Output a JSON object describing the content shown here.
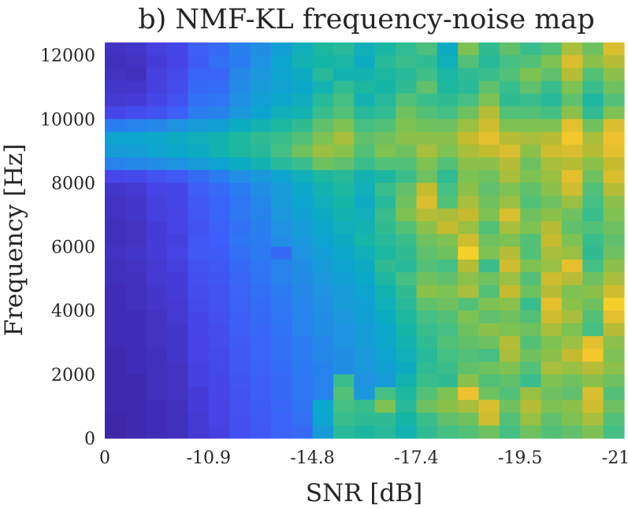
{
  "chart_data": {
    "type": "heatmap",
    "title": "b) NMF-KL frequency-noise map",
    "xlabel": "SNR [dB]",
    "ylabel": "Frequency [Hz]",
    "x_tick_labels": [
      "0",
      "-10.9",
      "-14.8",
      "-17.4",
      "-19.5",
      "-21.1"
    ],
    "y_ticks": [
      0,
      2000,
      4000,
      6000,
      8000,
      10000,
      12000
    ],
    "y_tick_labels": [
      "0",
      "2000",
      "4000",
      "6000",
      "8000",
      "10000",
      "12000"
    ],
    "ylim": [
      0,
      12400
    ],
    "n_columns": 25,
    "n_rows": 31,
    "colormap": "parula",
    "colors": [
      "#3e26a8",
      "#4743e6",
      "#3e5ff8",
      "#2b7af2",
      "#1f93df",
      "#0aa7cc",
      "#16b6a5",
      "#42bf86",
      "#82c24e",
      "#c3bb2f",
      "#f3c32e",
      "#f9e823"
    ],
    "values": [
      [
        0.04,
        0.05,
        0.08,
        0.1,
        0.18,
        0.22,
        0.3,
        0.34,
        0.42,
        0.5,
        0.56,
        0.58,
        0.5,
        0.55,
        0.6,
        0.65,
        0.48,
        0.72,
        0.6,
        0.68,
        0.62,
        0.66,
        0.78,
        0.7,
        0.86
      ],
      [
        0.03,
        0.04,
        0.07,
        0.09,
        0.17,
        0.24,
        0.28,
        0.36,
        0.45,
        0.52,
        0.54,
        0.55,
        0.48,
        0.58,
        0.62,
        0.6,
        0.5,
        0.66,
        0.58,
        0.64,
        0.66,
        0.72,
        0.86,
        0.74,
        0.8
      ],
      [
        0.04,
        0.03,
        0.08,
        0.11,
        0.2,
        0.21,
        0.32,
        0.38,
        0.44,
        0.48,
        0.58,
        0.52,
        0.52,
        0.56,
        0.58,
        0.63,
        0.55,
        0.6,
        0.62,
        0.66,
        0.72,
        0.68,
        0.8,
        0.66,
        0.74
      ],
      [
        0.05,
        0.05,
        0.08,
        0.12,
        0.22,
        0.23,
        0.33,
        0.4,
        0.43,
        0.46,
        0.52,
        0.6,
        0.56,
        0.54,
        0.6,
        0.68,
        0.56,
        0.58,
        0.68,
        0.62,
        0.68,
        0.62,
        0.72,
        0.62,
        0.7
      ],
      [
        0.06,
        0.07,
        0.1,
        0.14,
        0.24,
        0.26,
        0.35,
        0.42,
        0.46,
        0.49,
        0.58,
        0.64,
        0.52,
        0.58,
        0.66,
        0.62,
        0.6,
        0.64,
        0.72,
        0.6,
        0.62,
        0.58,
        0.68,
        0.56,
        0.66
      ],
      [
        0.1,
        0.12,
        0.14,
        0.18,
        0.28,
        0.3,
        0.38,
        0.44,
        0.5,
        0.52,
        0.62,
        0.66,
        0.58,
        0.6,
        0.7,
        0.66,
        0.64,
        0.7,
        0.8,
        0.66,
        0.66,
        0.64,
        0.74,
        0.6,
        0.72
      ],
      [
        0.28,
        0.3,
        0.32,
        0.36,
        0.4,
        0.42,
        0.48,
        0.52,
        0.56,
        0.6,
        0.68,
        0.72,
        0.64,
        0.66,
        0.72,
        0.7,
        0.7,
        0.76,
        0.84,
        0.72,
        0.72,
        0.72,
        0.88,
        0.7,
        0.86
      ],
      [
        0.44,
        0.45,
        0.46,
        0.48,
        0.5,
        0.52,
        0.56,
        0.6,
        0.62,
        0.66,
        0.72,
        0.78,
        0.68,
        0.7,
        0.74,
        0.74,
        0.74,
        0.82,
        0.88,
        0.8,
        0.78,
        0.8,
        0.92,
        0.78,
        0.9
      ],
      [
        0.4,
        0.41,
        0.44,
        0.46,
        0.48,
        0.52,
        0.56,
        0.58,
        0.64,
        0.7,
        0.76,
        0.74,
        0.66,
        0.72,
        0.7,
        0.78,
        0.72,
        0.78,
        0.82,
        0.86,
        0.74,
        0.84,
        0.86,
        0.8,
        0.88
      ],
      [
        0.3,
        0.32,
        0.34,
        0.36,
        0.4,
        0.44,
        0.48,
        0.52,
        0.58,
        0.62,
        0.7,
        0.68,
        0.62,
        0.66,
        0.66,
        0.72,
        0.66,
        0.74,
        0.74,
        0.8,
        0.7,
        0.78,
        0.8,
        0.74,
        0.82
      ],
      [
        0.1,
        0.11,
        0.14,
        0.16,
        0.22,
        0.28,
        0.34,
        0.38,
        0.44,
        0.5,
        0.56,
        0.58,
        0.52,
        0.56,
        0.62,
        0.7,
        0.6,
        0.72,
        0.7,
        0.78,
        0.72,
        0.76,
        0.88,
        0.7,
        0.86
      ],
      [
        0.05,
        0.06,
        0.09,
        0.1,
        0.18,
        0.22,
        0.28,
        0.34,
        0.4,
        0.46,
        0.52,
        0.56,
        0.5,
        0.62,
        0.68,
        0.82,
        0.64,
        0.74,
        0.68,
        0.72,
        0.68,
        0.74,
        0.84,
        0.66,
        0.8
      ],
      [
        0.04,
        0.05,
        0.08,
        0.1,
        0.16,
        0.2,
        0.26,
        0.32,
        0.4,
        0.44,
        0.5,
        0.54,
        0.48,
        0.58,
        0.7,
        0.86,
        0.66,
        0.78,
        0.7,
        0.76,
        0.66,
        0.7,
        0.76,
        0.64,
        0.74
      ],
      [
        0.04,
        0.05,
        0.08,
        0.09,
        0.15,
        0.2,
        0.27,
        0.3,
        0.38,
        0.42,
        0.48,
        0.52,
        0.5,
        0.62,
        0.72,
        0.8,
        0.78,
        0.82,
        0.72,
        0.86,
        0.7,
        0.74,
        0.7,
        0.62,
        0.72
      ],
      [
        0.03,
        0.04,
        0.07,
        0.09,
        0.14,
        0.19,
        0.24,
        0.29,
        0.36,
        0.4,
        0.46,
        0.5,
        0.52,
        0.6,
        0.66,
        0.74,
        0.82,
        0.76,
        0.66,
        0.78,
        0.72,
        0.8,
        0.68,
        0.66,
        0.7
      ],
      [
        0.03,
        0.04,
        0.07,
        0.08,
        0.15,
        0.18,
        0.26,
        0.28,
        0.34,
        0.38,
        0.44,
        0.48,
        0.54,
        0.58,
        0.62,
        0.7,
        0.72,
        0.84,
        0.7,
        0.72,
        0.66,
        0.82,
        0.72,
        0.62,
        0.68
      ],
      [
        0.04,
        0.05,
        0.07,
        0.09,
        0.16,
        0.17,
        0.24,
        0.27,
        0.22,
        0.36,
        0.42,
        0.46,
        0.5,
        0.56,
        0.6,
        0.68,
        0.7,
        0.94,
        0.72,
        0.8,
        0.66,
        0.78,
        0.76,
        0.6,
        0.7
      ],
      [
        0.03,
        0.04,
        0.06,
        0.08,
        0.14,
        0.16,
        0.22,
        0.26,
        0.3,
        0.34,
        0.4,
        0.44,
        0.48,
        0.6,
        0.58,
        0.66,
        0.64,
        0.8,
        0.62,
        0.84,
        0.72,
        0.76,
        0.88,
        0.64,
        0.74
      ],
      [
        0.03,
        0.03,
        0.06,
        0.07,
        0.13,
        0.15,
        0.21,
        0.25,
        0.3,
        0.33,
        0.38,
        0.42,
        0.46,
        0.56,
        0.64,
        0.7,
        0.68,
        0.74,
        0.7,
        0.76,
        0.66,
        0.84,
        0.8,
        0.7,
        0.78
      ],
      [
        0.02,
        0.03,
        0.05,
        0.07,
        0.12,
        0.14,
        0.2,
        0.24,
        0.28,
        0.32,
        0.36,
        0.4,
        0.44,
        0.52,
        0.6,
        0.74,
        0.72,
        0.78,
        0.66,
        0.82,
        0.7,
        0.8,
        0.72,
        0.74,
        0.84
      ],
      [
        0.02,
        0.03,
        0.05,
        0.06,
        0.11,
        0.14,
        0.19,
        0.23,
        0.27,
        0.31,
        0.35,
        0.4,
        0.42,
        0.5,
        0.58,
        0.68,
        0.7,
        0.66,
        0.72,
        0.74,
        0.62,
        0.88,
        0.74,
        0.7,
        0.94
      ],
      [
        0.02,
        0.02,
        0.04,
        0.06,
        0.1,
        0.13,
        0.18,
        0.22,
        0.26,
        0.3,
        0.34,
        0.38,
        0.42,
        0.48,
        0.56,
        0.64,
        0.66,
        0.72,
        0.68,
        0.7,
        0.66,
        0.84,
        0.78,
        0.66,
        0.88
      ],
      [
        0.02,
        0.02,
        0.04,
        0.05,
        0.1,
        0.12,
        0.18,
        0.21,
        0.25,
        0.3,
        0.34,
        0.36,
        0.4,
        0.46,
        0.54,
        0.62,
        0.64,
        0.7,
        0.74,
        0.72,
        0.7,
        0.78,
        0.72,
        0.64,
        0.8
      ],
      [
        0.02,
        0.02,
        0.04,
        0.05,
        0.09,
        0.12,
        0.17,
        0.2,
        0.24,
        0.28,
        0.32,
        0.36,
        0.4,
        0.46,
        0.52,
        0.6,
        0.66,
        0.68,
        0.7,
        0.8,
        0.66,
        0.72,
        0.76,
        0.88,
        0.74
      ],
      [
        0.01,
        0.02,
        0.03,
        0.05,
        0.09,
        0.11,
        0.16,
        0.2,
        0.24,
        0.28,
        0.32,
        0.34,
        0.38,
        0.44,
        0.5,
        0.58,
        0.64,
        0.66,
        0.64,
        0.78,
        0.7,
        0.74,
        0.82,
        0.92,
        0.72
      ],
      [
        0.01,
        0.02,
        0.03,
        0.04,
        0.08,
        0.11,
        0.16,
        0.19,
        0.23,
        0.27,
        0.3,
        0.34,
        0.38,
        0.42,
        0.48,
        0.6,
        0.62,
        0.68,
        0.7,
        0.72,
        0.66,
        0.78,
        0.76,
        0.8,
        0.74
      ],
      [
        0.01,
        0.01,
        0.03,
        0.04,
        0.08,
        0.1,
        0.15,
        0.18,
        0.22,
        0.26,
        0.3,
        0.62,
        0.36,
        0.4,
        0.52,
        0.62,
        0.6,
        0.74,
        0.66,
        0.68,
        0.62,
        0.72,
        0.7,
        0.74,
        0.7
      ],
      [
        0.01,
        0.01,
        0.03,
        0.04,
        0.07,
        0.1,
        0.14,
        0.18,
        0.22,
        0.26,
        0.3,
        0.66,
        0.38,
        0.64,
        0.56,
        0.66,
        0.72,
        0.9,
        0.7,
        0.66,
        0.76,
        0.7,
        0.68,
        0.86,
        0.66
      ],
      [
        0.01,
        0.01,
        0.02,
        0.03,
        0.07,
        0.09,
        0.14,
        0.17,
        0.21,
        0.25,
        0.46,
        0.64,
        0.62,
        0.72,
        0.58,
        0.7,
        0.74,
        0.78,
        0.86,
        0.7,
        0.8,
        0.72,
        0.74,
        0.84,
        0.7
      ],
      [
        0.0,
        0.01,
        0.02,
        0.03,
        0.06,
        0.09,
        0.13,
        0.17,
        0.2,
        0.24,
        0.44,
        0.62,
        0.6,
        0.6,
        0.54,
        0.62,
        0.68,
        0.7,
        0.84,
        0.66,
        0.76,
        0.68,
        0.72,
        0.78,
        0.66
      ],
      [
        0.0,
        0.01,
        0.02,
        0.03,
        0.06,
        0.08,
        0.13,
        0.16,
        0.2,
        0.22,
        0.4,
        0.58,
        0.56,
        0.58,
        0.52,
        0.6,
        0.64,
        0.66,
        0.7,
        0.64,
        0.7,
        0.66,
        0.68,
        0.72,
        0.64
      ]
    ]
  }
}
